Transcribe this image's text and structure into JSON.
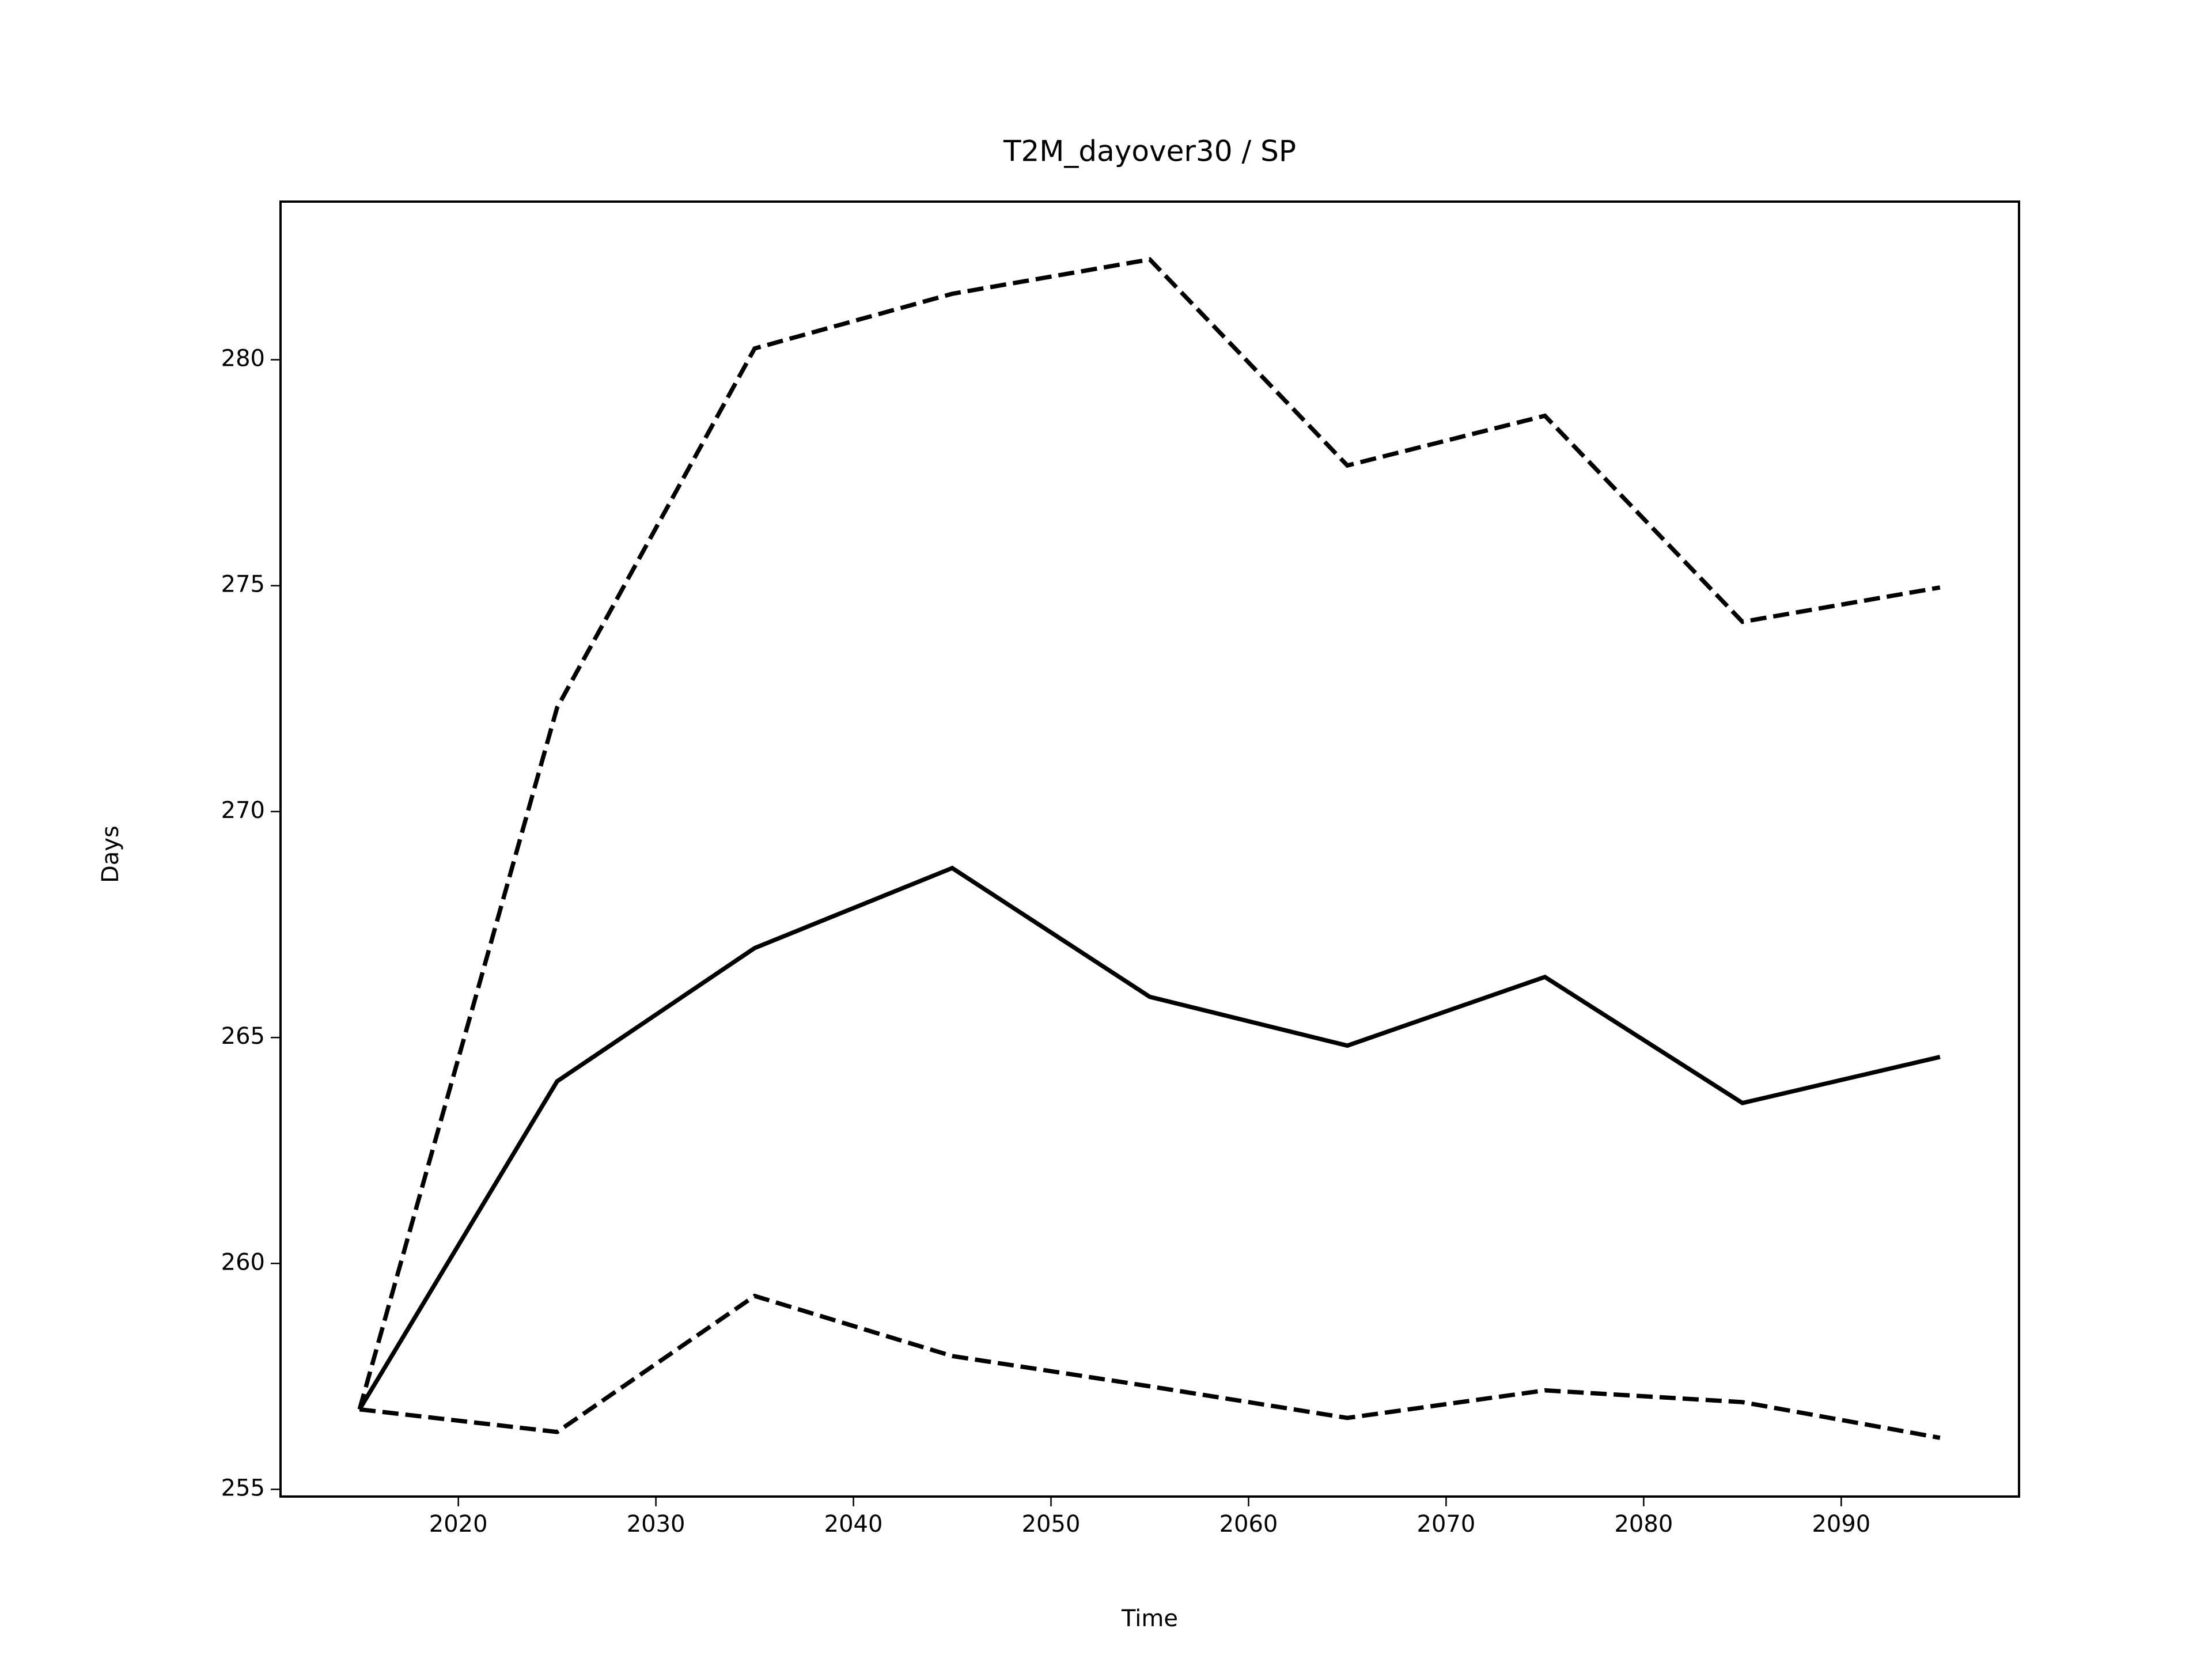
{
  "chart_data": {
    "type": "line",
    "title": "T2M_dayover30 / SP",
    "xlabel": "Time",
    "ylabel": "Days",
    "x": [
      2015,
      2025,
      2035,
      2045,
      2055,
      2065,
      2075,
      2085,
      2095
    ],
    "series": [
      {
        "color": "#000000",
        "linestyle": "solid",
        "values": [
          256.77,
          264.03,
          266.98,
          268.75,
          265.9,
          264.82,
          266.34,
          263.55,
          264.57
        ]
      },
      {
        "color": "#000000",
        "linestyle": "dashed",
        "values": [
          256.77,
          272.3,
          280.25,
          281.46,
          282.22,
          277.66,
          278.76,
          274.2,
          274.96
        ]
      },
      {
        "color": "#000000",
        "linestyle": "dashed",
        "values": [
          256.77,
          256.27,
          259.28,
          257.95,
          257.28,
          256.58,
          257.19,
          256.93,
          256.14
        ]
      }
    ],
    "xlim": [
      2011,
      2099
    ],
    "xticks": [
      2020,
      2030,
      2040,
      2050,
      2060,
      2070,
      2080,
      2090
    ],
    "ylim": [
      254.84,
      283.5
    ],
    "yticks": [
      255,
      260,
      265,
      270,
      275,
      280
    ]
  }
}
